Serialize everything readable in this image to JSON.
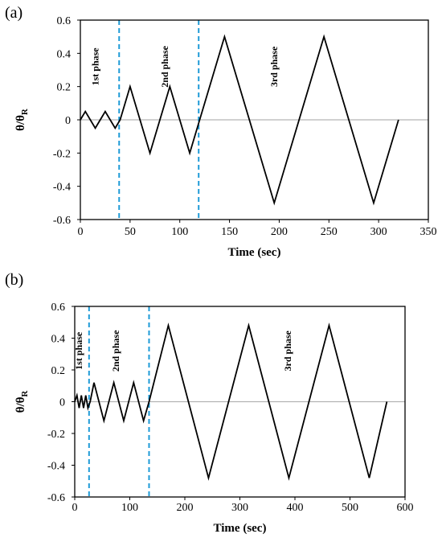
{
  "chart_data": [
    {
      "type": "line",
      "panel_label": "(a)",
      "xlabel": "Time (sec)",
      "ylabel_main": "θ/θ",
      "ylabel_sub": "R",
      "xlim": [
        0,
        350
      ],
      "ylim": [
        -0.6,
        0.6
      ],
      "xticks": [
        0,
        50,
        100,
        150,
        200,
        250,
        300,
        350
      ],
      "yticks": [
        0.6,
        0.4,
        0.2,
        0,
        -0.2,
        -0.4,
        -0.6
      ],
      "ytick_labels": [
        "0.6",
        "0.4",
        "0.2",
        "0",
        "-0.2",
        "-0.4",
        "-0.6"
      ],
      "phase_lines_x": [
        39,
        119
      ],
      "phase_lines_color": "#1f9bd7",
      "phase_labels": [
        {
          "text": "1st phase",
          "x": 18,
          "y": 0.32
        },
        {
          "text": "2nd phase",
          "x": 88,
          "y": 0.32
        },
        {
          "text": "3rd phase",
          "x": 198,
          "y": 0.32
        }
      ],
      "series": [
        {
          "color": "#000000",
          "x": [
            0,
            5,
            15,
            25,
            35,
            40,
            50,
            70,
            90,
            110,
            120,
            145,
            195,
            245,
            295,
            320
          ],
          "y": [
            0,
            0.05,
            -0.05,
            0.05,
            -0.05,
            0,
            0.2,
            -0.2,
            0.2,
            -0.2,
            0,
            0.5,
            -0.5,
            0.5,
            -0.5,
            0
          ]
        }
      ]
    },
    {
      "type": "line",
      "panel_label": "(b)",
      "xlabel": "Time (sec)",
      "ylabel_main": "θ/θ",
      "ylabel_sub": "R",
      "xlim": [
        0,
        600
      ],
      "ylim": [
        -0.6,
        0.6
      ],
      "xticks": [
        0,
        100,
        200,
        300,
        400,
        500,
        600
      ],
      "yticks": [
        0.6,
        0.4,
        0.2,
        0,
        -0.2,
        -0.4,
        -0.6
      ],
      "ytick_labels": [
        "0.6",
        "0.4",
        "0.2",
        "0",
        "-0.2",
        "-0.4",
        "-0.6"
      ],
      "phase_lines_x": [
        26,
        135
      ],
      "phase_lines_color": "#1f9bd7",
      "phase_labels": [
        {
          "text": "1st phase",
          "x": 13,
          "y": 0.32
        },
        {
          "text": "2nd phase",
          "x": 80,
          "y": 0.32
        },
        {
          "text": "3rd phase",
          "x": 393,
          "y": 0.32
        }
      ],
      "series": [
        {
          "color": "#000000",
          "x": [
            0,
            4,
            8,
            12,
            16,
            20,
            24,
            28,
            35,
            53,
            71,
            89,
            107,
            125,
            135,
            170,
            243,
            316,
            389,
            462,
            535,
            567
          ],
          "y": [
            0,
            0.04,
            -0.04,
            0.04,
            -0.04,
            0.04,
            -0.04,
            0,
            0.12,
            -0.12,
            0.12,
            -0.12,
            0.12,
            -0.12,
            0,
            0.48,
            -0.48,
            0.48,
            -0.48,
            0.48,
            -0.48,
            0
          ]
        }
      ]
    }
  ]
}
